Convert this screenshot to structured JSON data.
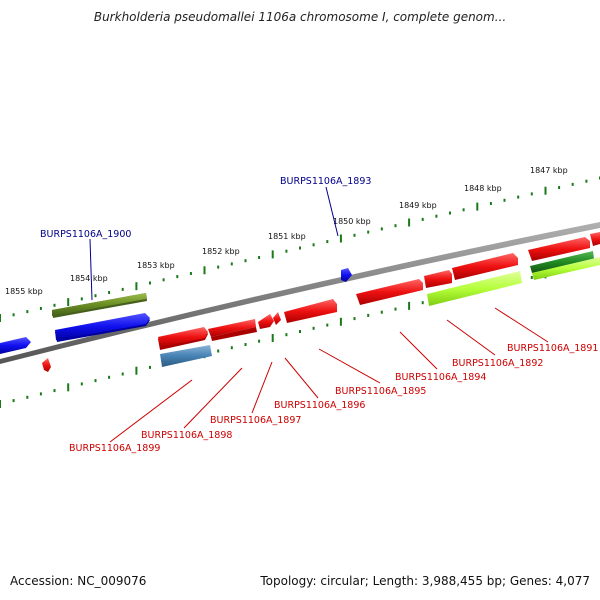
{
  "title": "Burkholderia pseudomallei 1106a chromosome I, complete genom...",
  "footer": {
    "accession": "Accession: NC_009076",
    "summary": "Topology: circular; Length: 3,988,455 bp; Genes: 4,077"
  },
  "scale_labels": [
    "1847 kbp",
    "1848 kbp",
    "1849 kbp",
    "1850 kbp",
    "1851 kbp",
    "1852 kbp",
    "1853 kbp",
    "1854 kbp",
    "1855 kbp"
  ],
  "gene_labels_top": [
    "BURPS1106A_1893",
    "BURPS1106A_1900"
  ],
  "gene_labels_bottom": [
    "BURPS1106A_1891",
    "BURPS1106A_1892",
    "BURPS1106A_1894",
    "BURPS1106A_1895",
    "BURPS1106A_1896",
    "BURPS1106A_1897",
    "BURPS1106A_1898",
    "BURPS1106A_1899"
  ],
  "colors": {
    "backbone": "#808080",
    "tick": "#1a7a1a",
    "gene_red": "#ee1111",
    "gene_blue": "#1010ee",
    "gene_olive": "#6b8e23",
    "gene_lime": "#adff2f",
    "gene_steel": "#4682b4",
    "gene_darkgreen": "#228b22",
    "label_blue": "#00008b",
    "label_red": "#cc0000"
  }
}
